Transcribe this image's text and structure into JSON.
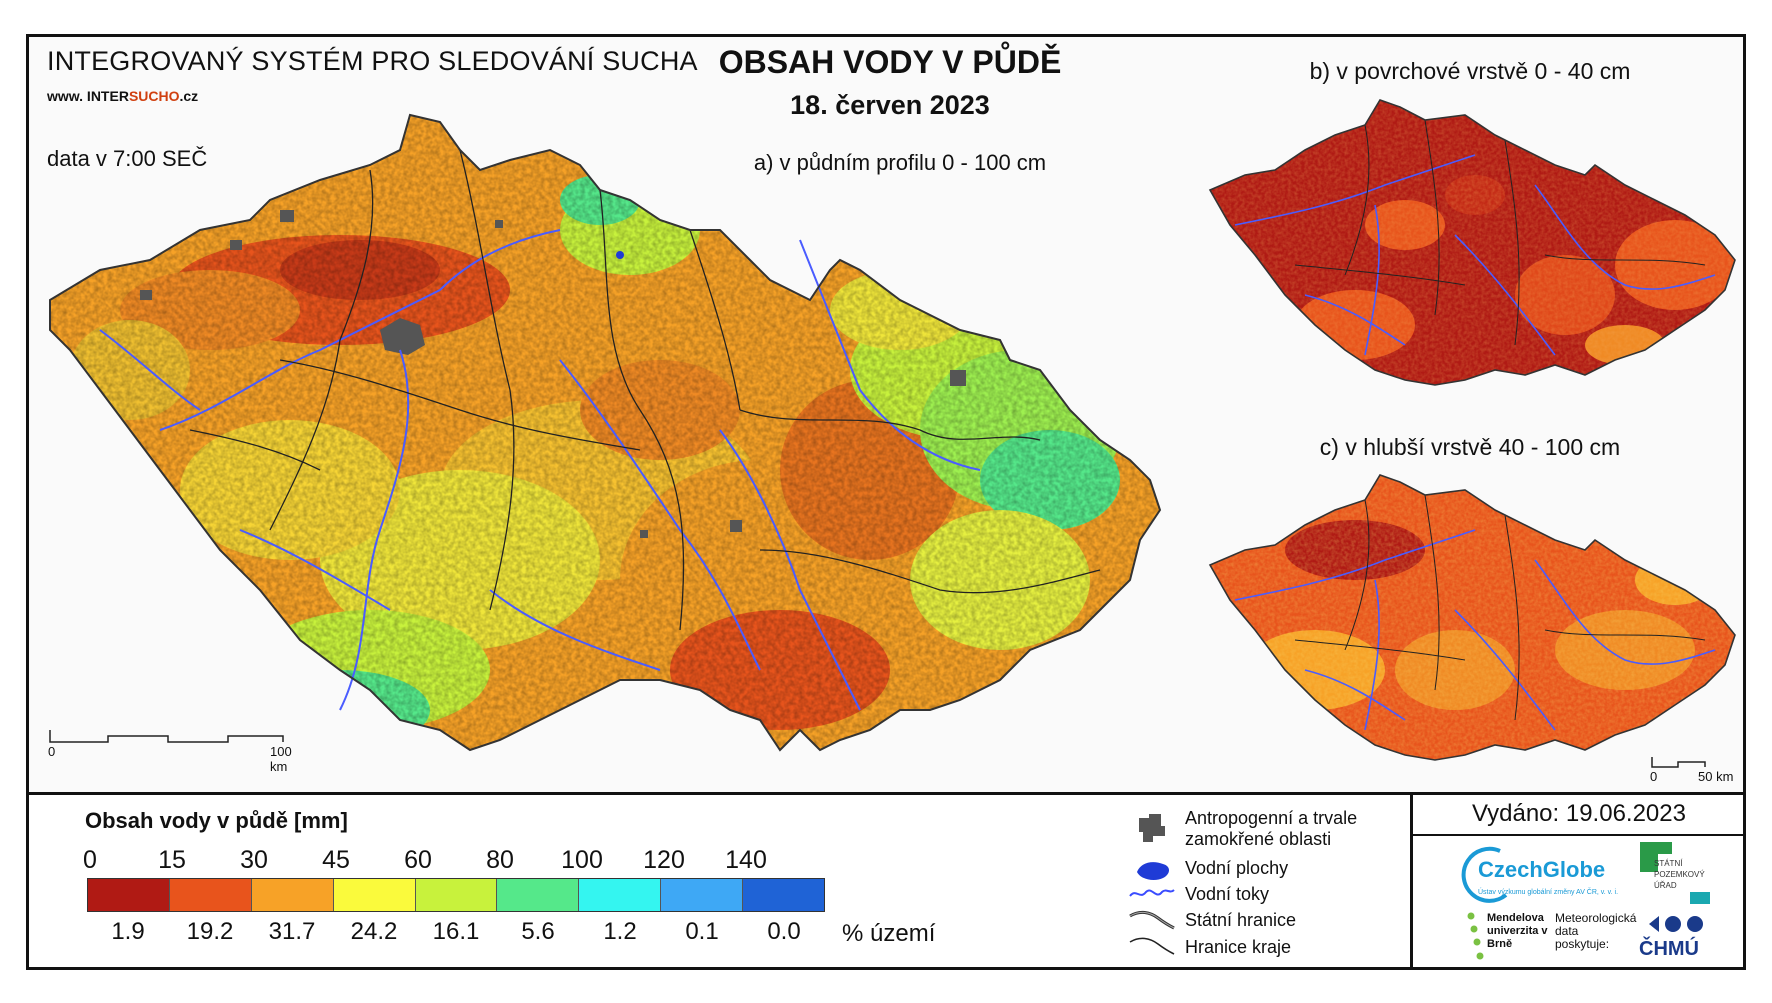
{
  "header": {
    "system_title": "INTEGROVANÝ SYSTÉM PRO SLEDOVÁNÍ SUCHA",
    "website_prefix": "www. INTER",
    "website_highlight": "SUCHO",
    "website_suffix": ".cz",
    "data_time": "data v 7:00 SEČ",
    "main_title": "OBSAH VODY V PŮDĚ",
    "date": "18. červen 2023"
  },
  "panels": {
    "a": "a) v půdním profilu 0 - 100 cm",
    "b": "b) v povrchové vrstvě 0 - 40 cm",
    "c": "c) v hlubší vrstvě 40 - 100 cm"
  },
  "scale_a": {
    "start": "0",
    "end": "100 km"
  },
  "scale_c": {
    "start": "0",
    "end": "50 km"
  },
  "legend": {
    "title": "Obsah vody v půdě  [mm]",
    "ticks": [
      "0",
      "15",
      "30",
      "45",
      "60",
      "80",
      "100",
      "120",
      "140"
    ],
    "colors": [
      "#b01a14",
      "#e8541c",
      "#f7a227",
      "#fafa3c",
      "#c8f23c",
      "#55e88a",
      "#34f5f0",
      "#3ea8f5",
      "#1f63d6"
    ],
    "percentages": [
      "1.9",
      "19.2",
      "31.7",
      "24.2",
      "16.1",
      "5.6",
      "1.2",
      "0.1",
      "0.0"
    ],
    "pct_unit": "% území"
  },
  "symbols": {
    "anthropogenic": "Antropogenní a trvale zamokřené oblasti",
    "water_bodies": "Vodní plochy",
    "water_courses": "Vodní toky",
    "state_border": "Státní hranice",
    "region_border": "Hranice kraje"
  },
  "issued": "Vydáno: 19.06.2023",
  "logos": {
    "czechglobe": "CzechGlobe",
    "czechglobe_sub": "Ústav výzkumu globální změny AV ČR, v. v. i.",
    "spu": "STÁTNÍ POZEMKOVÝ ÚŘAD",
    "mendel": "Mendelova univerzita v Brně",
    "meteo": "Meteorologická data poskytuje:",
    "chmu": "ČHMÚ"
  }
}
